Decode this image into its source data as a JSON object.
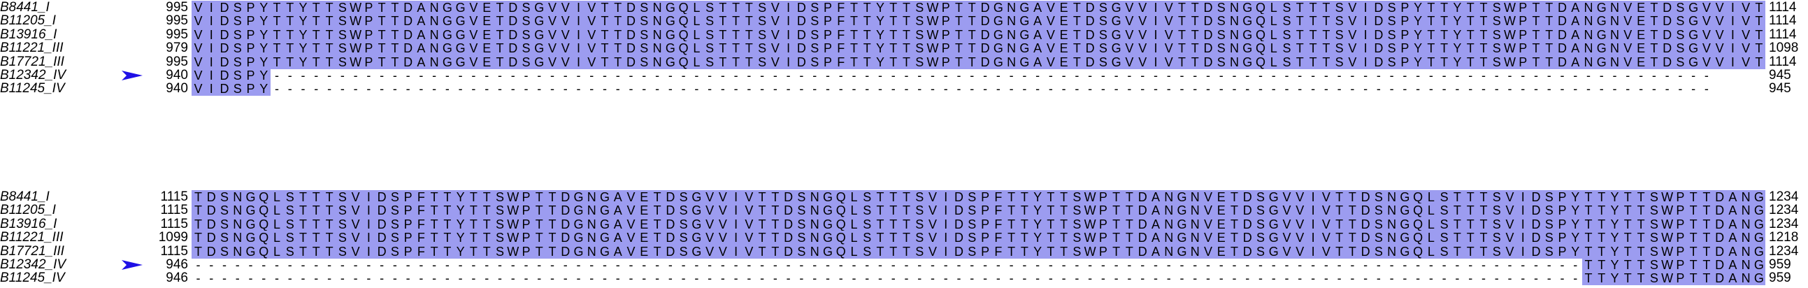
{
  "colors": {
    "conserved_shading": "#9c9cf0",
    "arrow": "#1f10e6",
    "text": "#000000"
  },
  "blocks": [
    {
      "rows": [
        {
          "name": "B8441_I",
          "start": "995",
          "end": "1114",
          "seq": "VIDSPYTTYTTSWPTTDANGGVETDSGVVIVTTDSNGQLSTTTSVIDSPFTTYTTSWPTTDGNGAVETDSGVVIVTTDSNGQLSTTTSVIDSPYTTYTTSWPTTDANGNVETDSGVVIVT"
        },
        {
          "name": "B11205_I",
          "start": "995",
          "end": "1114",
          "seq": "VIDSPYTTYTTSWPTTDANGGVETDSGVVIVTTDSNGQLSTTTSVIDSPFTTYTTSWPTTDGNGAVETDSGVVIVTTDSNGQLSTTTSVIDSPYTTYTTSWPTTDANGNVETDSGVVIVT"
        },
        {
          "name": "B13916_I",
          "start": "995",
          "end": "1114",
          "seq": "VIDSPYTTYTTSWPTTDANGGVETDSGVVIVTTDSNGQLSTTTSVIDSPFTTYTTSWPTTDGNGAVETDSGVVIVTTDSNGQLSTTTSVIDSPYTTYTTSWPTTDANGNVETDSGVVIVT"
        },
        {
          "name": "B11221_III",
          "start": "979",
          "end": "1098",
          "seq": "VIDSPYTTYTTSWPTTDANGGVETDSGVVIVTTDSNGQLSTTTSVIDSPFTTYTTSWPTTDGNGAVETDSGVVIVTTDSNGQLSTTTSVIDSPYTTYTTSWPTTDANGNVETDSGVVIVT"
        },
        {
          "name": "B17721_III",
          "start": "995",
          "end": "1114",
          "seq": "VIDSPYTTYTTSWPTTDANGGVETDSGVVIVTTDSNGQLSTTTSVIDSPFTTYTTSWPTTDGNGAVETDSGVVIVTTDSNGQLSTTTSVIDSPYTTYTTSWPTTDANGNVETDSGVVIVT"
        },
        {
          "name": "B12342_IV",
          "start": "940",
          "end": "945",
          "seq": "VIDSPY--------------------------------------------------------------------------------------------------------------",
          "marked": true
        },
        {
          "name": "B11245_IV",
          "start": "940",
          "end": "945",
          "seq": "VIDSPY--------------------------------------------------------------------------------------------------------------"
        }
      ]
    },
    {
      "rows": [
        {
          "name": "B8441_I",
          "start": "1115",
          "end": "1234",
          "seq": "TDSNGQLSTTTSVIDSPFTTYTTSWPTTDGNGAVETDSGVVIVTTDSNGQLSTTTSVIDSPFTTYTTSWPTTDANGNVETDSGVVIVTTDSNGQLSTTTSVIDSPYTTYTTSWPTTDANG"
        },
        {
          "name": "B11205_I",
          "start": "1115",
          "end": "1234",
          "seq": "TDSNGQLSTTTSVIDSPFTTYTTSWPTTDGNGAVETDSGVVIVTTDSNGQLSTTTSVIDSPFTTYTTSWPTTDANGNVETDSGVVIVTTDSNGQLSTTTSVIDSPYTTYTTSWPTTDANG"
        },
        {
          "name": "B13916_I",
          "start": "1115",
          "end": "1234",
          "seq": "TDSNGQLSTTTSVIDSPFTTYTTSWPTTDGNGAVETDSGVVIVTTDSNGQLSTTTSVIDSPFTTYTTSWPTTDANGNVETDSGVVIVTTDSNGQLSTTTSVIDSPYTTYTTSWPTTDANG"
        },
        {
          "name": "B11221_III",
          "start": "1099",
          "end": "1218",
          "seq": "TDSNGQLSTTTSVIDSPFTTYTTSWPTTDGNGAVETDSGVVIVTTDSNGQLSTTTSVIDSPFTTYTTSWPTTDANGNVETDSGVVIVTTDSNGQLSTTTSVIDSPYTTYTTSWPTTDANG"
        },
        {
          "name": "B17721_III",
          "start": "1115",
          "end": "1234",
          "seq": "TDSNGQLSTTTSVIDSPFTTYTTSWPTTDGNGAVETDSGVVIVTTDSNGQLSTTTSVIDSPFTTYTTSWPTTDANGNVETDSGVVIVTTDSNGQLSTTTSVIDSPYTTYTTSWPTTDANG"
        },
        {
          "name": "B12342_IV",
          "start": "946",
          "end": "959",
          "seq": "----------------------------------------------------------------------------------------------------------TTYTTSWPTTDANG",
          "marked": true
        },
        {
          "name": "B11245_IV",
          "start": "946",
          "end": "959",
          "seq": "----------------------------------------------------------------------------------------------------------TTYTTSWPTTDANG"
        }
      ]
    }
  ]
}
